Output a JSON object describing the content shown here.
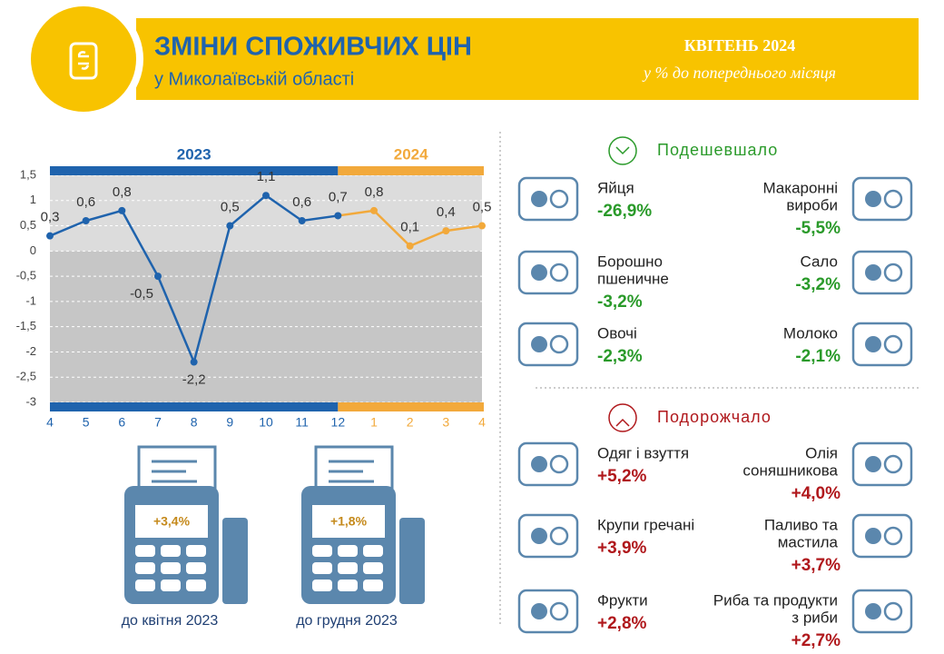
{
  "header": {
    "title": "ЗМІНИ СПОЖИВЧИХ ЦІН",
    "subtitle": "у Миколаївській області",
    "period": "КВІТЕНЬ 2024",
    "note": "у % до попереднього місяця"
  },
  "chart_data": {
    "type": "line",
    "categories": [
      "4",
      "5",
      "6",
      "7",
      "8",
      "9",
      "10",
      "11",
      "12",
      "1",
      "2",
      "3",
      "4"
    ],
    "series": [
      {
        "name": "2023",
        "color": "#1f63ad",
        "values": [
          0.3,
          0.6,
          0.8,
          -0.5,
          -2.2,
          0.5,
          1.1,
          0.6,
          0.7,
          null,
          null,
          null,
          null
        ],
        "value_labels": [
          "0,3",
          "0,6",
          "0,8",
          "-0,5",
          "-2,2",
          "0,5",
          "1,1",
          "0,6",
          "0,7",
          null,
          null,
          null,
          null
        ]
      },
      {
        "name": "2024",
        "color": "#f2a93b",
        "values": [
          null,
          null,
          null,
          null,
          null,
          null,
          null,
          null,
          null,
          0.8,
          0.1,
          0.4,
          0.5
        ],
        "value_labels": [
          null,
          null,
          null,
          null,
          null,
          null,
          null,
          null,
          null,
          "0,8",
          "0,1",
          "0,4",
          "0,5"
        ]
      }
    ],
    "ylim": [
      -3,
      1.5
    ],
    "yticks": [
      {
        "value": 1.5,
        "label": "1,5"
      },
      1,
      {
        "value": 0.5,
        "label": "0,5"
      },
      0,
      {
        "value": -0.5,
        "label": "-0,5"
      },
      -1,
      {
        "value": -1.5,
        "label": "-1,5"
      },
      -2,
      {
        "value": -2.5,
        "label": "-2,5"
      },
      -3
    ],
    "grid": true
  },
  "receipts": [
    {
      "value": "+3,4%",
      "label": "до квітня 2023"
    },
    {
      "value": "+1,8%",
      "label": "до грудня 2023"
    }
  ],
  "cheaper": {
    "title": "Подешевшало",
    "items": [
      {
        "name": [
          "Яйця"
        ],
        "change": "-26,9%"
      },
      {
        "name": [
          "Макаронні",
          "вироби"
        ],
        "change": "-5,5%"
      },
      {
        "name": [
          "Борошно",
          "пшеничне"
        ],
        "change": "-3,2%"
      },
      {
        "name": [
          "Сало"
        ],
        "change": "-3,2%"
      },
      {
        "name": [
          "Овочі"
        ],
        "change": "-2,3%"
      },
      {
        "name": [
          "Молоко"
        ],
        "change": "-2,1%"
      }
    ]
  },
  "pricier": {
    "title": "Подорожчало",
    "items": [
      {
        "name": [
          "Одяг і взуття"
        ],
        "change": "+5,2%"
      },
      {
        "name": [
          "Олія",
          "соняшникова"
        ],
        "change": "+4,0%"
      },
      {
        "name": [
          "Крупи гречані"
        ],
        "change": "+3,9%"
      },
      {
        "name": [
          "Паливо та",
          "мастила"
        ],
        "change": "+3,7%"
      },
      {
        "name": [
          "Фрукти"
        ],
        "change": "+2,8%"
      },
      {
        "name": [
          "Риба та продукти",
          "з риби"
        ],
        "change": "+2,7%"
      }
    ]
  }
}
